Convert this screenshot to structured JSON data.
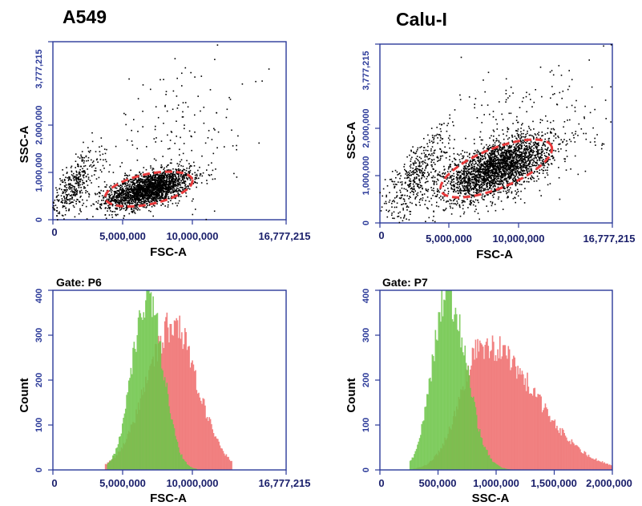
{
  "colors": {
    "axis": "#2b3a99",
    "dots": "#000000",
    "gate": "#e8393a",
    "green_hist": "#6fc64a",
    "red_hist": "#f07a7a",
    "overlap": "#b9822f"
  },
  "chart_data": [
    {
      "type": "scatter",
      "panel": "A549 scatter",
      "title": "A549",
      "xlabel": "FSC-A",
      "ylabel": "SSC-A",
      "xlim": [
        0,
        16777215
      ],
      "ylim": [
        0,
        3777215
      ],
      "xticks": [
        0,
        5000000,
        10000000,
        16777215
      ],
      "xtick_labels": [
        "0",
        "5,000,000",
        "10,000,000",
        "16,777,215"
      ],
      "yticks": [
        0,
        1000000,
        2000000,
        3777215
      ],
      "ytick_labels": [
        "0",
        "1,000,000",
        "2,000,000",
        "3,777,215"
      ],
      "gate": {
        "center_x": 6900000,
        "center_y": 650000,
        "semi_major_x": 3200000,
        "semi_minor_y": 320000,
        "rotation_deg": -12
      },
      "clusters": [
        {
          "label": "main",
          "n": 2200,
          "mean_x": 6900000,
          "mean_y": 650000,
          "sd_x": 1500000,
          "sd_y": 200000,
          "rho": 0.55
        },
        {
          "label": "debris",
          "n": 400,
          "mean_x": 1500000,
          "mean_y": 700000,
          "sd_x": 1000000,
          "sd_y": 380000,
          "rho": 0.7
        },
        {
          "label": "sparse",
          "n": 180,
          "mean_x": 9000000,
          "mean_y": 1700000,
          "sd_x": 3500000,
          "sd_y": 900000,
          "rho": 0.3
        }
      ]
    },
    {
      "type": "scatter",
      "panel": "Calu-I scatter",
      "title": "Calu-I",
      "xlabel": "FSC-A",
      "ylabel": "SSC-A",
      "xlim": [
        0,
        16777215
      ],
      "ylim": [
        0,
        3777215
      ],
      "xticks": [
        0,
        5000000,
        10000000,
        16777215
      ],
      "xtick_labels": [
        "0",
        "5,000,000",
        "10,000,000",
        "16,777,215"
      ],
      "yticks": [
        0,
        1000000,
        2000000,
        3777215
      ],
      "ytick_labels": [
        "0",
        "1,000,000",
        "2,000,000",
        "3,777,215"
      ],
      "gate": {
        "center_x": 8400000,
        "center_y": 1150000,
        "semi_major_x": 4300000,
        "semi_minor_y": 420000,
        "rotation_deg": -22
      },
      "clusters": [
        {
          "label": "main",
          "n": 2600,
          "mean_x": 8500000,
          "mean_y": 1150000,
          "sd_x": 1900000,
          "sd_y": 330000,
          "rho": 0.6
        },
        {
          "label": "debris",
          "n": 450,
          "mean_x": 2600000,
          "mean_y": 1000000,
          "sd_x": 1300000,
          "sd_y": 500000,
          "rho": 0.75
        },
        {
          "label": "sparse",
          "n": 220,
          "mean_x": 11000000,
          "mean_y": 2000000,
          "sd_x": 3500000,
          "sd_y": 800000,
          "rho": 0.35
        }
      ]
    },
    {
      "type": "area",
      "panel": "A549 histogram",
      "gate_label": "Gate: P6",
      "xlabel": "FSC-A",
      "ylabel": "Count",
      "xlim": [
        0,
        16777215
      ],
      "ylim": [
        0,
        400
      ],
      "xticks": [
        0,
        5000000,
        10000000,
        16777215
      ],
      "xtick_labels": [
        "0",
        "5,000,000",
        "10,000,000",
        "16,777,215"
      ],
      "yticks": [
        0,
        100,
        200,
        300,
        400
      ],
      "ytick_labels": [
        "0",
        "100",
        "200",
        "300",
        "400"
      ],
      "series": [
        {
          "color": "red",
          "peak_x": 8600000,
          "peak_y": 320,
          "start_x": 3700000,
          "end_x": 12900000,
          "sd_left": 1900000,
          "sd_right": 1800000
        },
        {
          "color": "green",
          "peak_x": 6800000,
          "peak_y": 390,
          "start_x": 3900000,
          "end_x": 10400000,
          "sd_left": 1100000,
          "sd_right": 1100000
        }
      ]
    },
    {
      "type": "area",
      "panel": "Calu-I histogram",
      "gate_label": "Gate: P7",
      "xlabel": "SSC-A",
      "ylabel": "Count",
      "xlim": [
        0,
        2000000
      ],
      "ylim": [
        0,
        400
      ],
      "xticks": [
        0,
        500000,
        1000000,
        1500000,
        2000000
      ],
      "xtick_labels": [
        "0",
        "500,000",
        "1,000,000",
        "1,500,000",
        "2,000,000"
      ],
      "yticks": [
        0,
        100,
        200,
        300,
        400
      ],
      "ytick_labels": [
        "0",
        "100",
        "200",
        "300",
        "400"
      ],
      "series": [
        {
          "color": "red",
          "peak_x": 900000,
          "peak_y": 280,
          "start_x": 280000,
          "end_x": 2000000,
          "sd_left": 200000,
          "sd_right": 430000
        },
        {
          "color": "green",
          "peak_x": 580000,
          "peak_y": 395,
          "start_x": 250000,
          "end_x": 1150000,
          "sd_left": 130000,
          "sd_right": 160000
        }
      ]
    }
  ]
}
